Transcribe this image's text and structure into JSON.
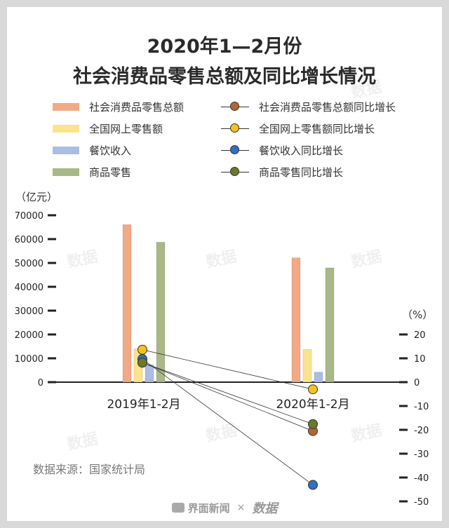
{
  "title_line1": "2020年1—2月份",
  "title_line2": "社会消费品零售总额及同比增长情况",
  "legend": {
    "bars": [
      {
        "label": "社会消费品零售总额",
        "color": "#f2a986"
      },
      {
        "label": "全国网上零售额",
        "color": "#fbe38c"
      },
      {
        "label": "餐饮收入",
        "color": "#aabde3"
      },
      {
        "label": "商品零售",
        "color": "#a9b886"
      }
    ],
    "lines": [
      {
        "label": "社会消费品零售总额同比增长",
        "color": "#b5642e"
      },
      {
        "label": "全国网上零售额同比增长",
        "color": "#f5c21b"
      },
      {
        "label": "餐饮收入同比增长",
        "color": "#2f6fc4"
      },
      {
        "label": "商品零售同比增长",
        "color": "#6b7a2a"
      }
    ]
  },
  "left_unit": "（亿元）",
  "right_unit": "（%）",
  "source": "数据来源：国家统计局",
  "footer": {
    "brand": "界面新闻",
    "separator": "×",
    "brand2": "数据"
  },
  "watermark": "数据",
  "chart_data": {
    "type": "bar",
    "categories": [
      "2019年1-2月",
      "2020年1-2月"
    ],
    "y_left": {
      "ylim": [
        0,
        70000
      ],
      "ticks": [
        "0",
        "10000",
        "20000",
        "30000",
        "40000",
        "50000",
        "60000",
        "70000"
      ]
    },
    "y_right": {
      "ylim": [
        -50,
        20
      ],
      "ticks": [
        "20",
        "10",
        "0",
        "-10",
        "-20",
        "-30",
        "-40",
        "-50"
      ]
    },
    "bar_series": [
      {
        "name": "社会消费品零售总额",
        "values": [
          66064,
          52130
        ],
        "color": "#f2a986"
      },
      {
        "name": "全国网上零售额",
        "values": [
          14000,
          13712
        ],
        "color": "#fbe38c"
      },
      {
        "name": "餐饮收入",
        "values": [
          7300,
          4194
        ],
        "color": "#aabde3"
      },
      {
        "name": "商品零售",
        "values": [
          58700,
          47936
        ],
        "color": "#a9b886"
      }
    ],
    "line_series": [
      {
        "name": "社会消费品零售总额同比增长",
        "values": [
          8.2,
          -20.5
        ],
        "color": "#b5642e"
      },
      {
        "name": "全国网上零售额同比增长",
        "values": [
          13.6,
          -3.0
        ],
        "color": "#f5c21b"
      },
      {
        "name": "餐饮收入同比增长",
        "values": [
          9.7,
          -43.1
        ],
        "color": "#2f6fc4"
      },
      {
        "name": "商品零售同比增长",
        "values": [
          8.2,
          -17.6
        ],
        "color": "#6b7a2a"
      }
    ]
  }
}
